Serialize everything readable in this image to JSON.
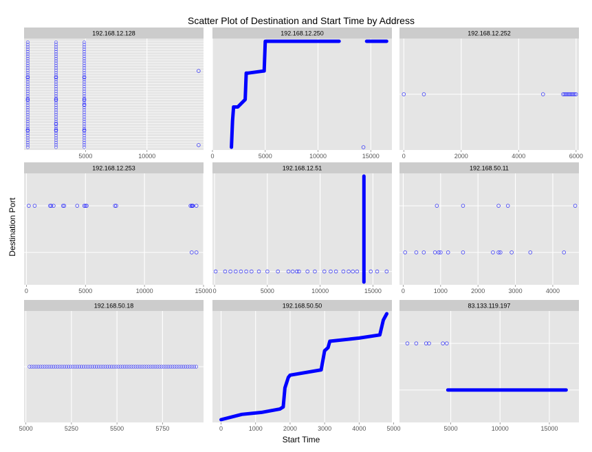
{
  "chart_data": {
    "type": "scatter",
    "title": "Scatter Plot of Destination and Start Time by Address",
    "xlabel": "Start Time",
    "ylabel": "Destination Port",
    "colors": {
      "point": "#0000ff",
      "panel_bg": "#e5e5e5",
      "strip_bg": "#cccccc",
      "grid": "#ffffff"
    },
    "facets": [
      {
        "label": "192.168.12.128",
        "xlim": [
          0,
          14600
        ],
        "xticks": [
          5000,
          10000
        ],
        "ylim": [
          0,
          100
        ],
        "dense_hgrid": true,
        "columns": [
          {
            "x": 300,
            "y0": 0,
            "y1": 100
          },
          {
            "x": 2600,
            "y0": 0,
            "y1": 100
          },
          {
            "x": 4900,
            "y0": 0,
            "y1": 100
          }
        ],
        "lines": [],
        "points": [
          [
            300,
            66
          ],
          [
            300,
            45
          ],
          [
            300,
            16
          ],
          [
            2600,
            66
          ],
          [
            2600,
            45
          ],
          [
            2600,
            22
          ],
          [
            2600,
            16
          ],
          [
            4900,
            66
          ],
          [
            4900,
            45
          ],
          [
            4900,
            40
          ],
          [
            4900,
            16
          ],
          [
            14200,
            72
          ],
          [
            14200,
            2
          ]
        ]
      },
      {
        "label": "192.168.12.250",
        "xlim": [
          0,
          17000
        ],
        "xticks": [
          0,
          5000,
          10000,
          15000
        ],
        "ylim": [
          0,
          100
        ],
        "lines": [
          [
            [
              1800,
              0
            ],
            [
              1900,
              25
            ],
            [
              2000,
              38
            ],
            [
              2200,
              38
            ],
            [
              2400,
              38
            ],
            [
              3100,
              45
            ],
            [
              3200,
              70
            ],
            [
              3400,
              70
            ],
            [
              4900,
              72
            ],
            [
              5000,
              100
            ],
            [
              7000,
              100
            ],
            [
              12000,
              100
            ]
          ],
          [
            [
              14600,
              100
            ],
            [
              16500,
              100
            ]
          ]
        ],
        "points": [
          [
            14300,
            0
          ]
        ]
      },
      {
        "label": "192.168.12.252",
        "xlim": [
          -150,
          6100
        ],
        "xticks": [
          0,
          2000,
          4000,
          6000
        ],
        "ylim": [
          0,
          100
        ],
        "points": [
          [
            0,
            50
          ],
          [
            700,
            50
          ],
          [
            4850,
            50
          ],
          [
            5550,
            50
          ],
          [
            5600,
            50
          ],
          [
            5650,
            50
          ],
          [
            5700,
            50
          ],
          [
            5750,
            50
          ],
          [
            5800,
            50
          ],
          [
            5850,
            50
          ],
          [
            5900,
            50
          ],
          [
            5950,
            50
          ],
          [
            6000,
            50
          ]
        ]
      },
      {
        "label": "192.168.12.253",
        "xlim": [
          -200,
          15000
        ],
        "xticks": [
          0,
          5000,
          10000,
          15000
        ],
        "ylim": [
          0,
          100
        ],
        "points": [
          [
            200,
            72
          ],
          [
            700,
            72
          ],
          [
            2000,
            72
          ],
          [
            2100,
            72
          ],
          [
            2300,
            72
          ],
          [
            3100,
            72
          ],
          [
            3200,
            72
          ],
          [
            4300,
            72
          ],
          [
            4900,
            72
          ],
          [
            5000,
            72
          ],
          [
            5100,
            72
          ],
          [
            7500,
            72
          ],
          [
            7600,
            72
          ],
          [
            13900,
            72
          ],
          [
            14000,
            72
          ],
          [
            14050,
            72
          ],
          [
            14100,
            72
          ],
          [
            14400,
            72
          ],
          [
            14000,
            28
          ],
          [
            14400,
            28
          ]
        ]
      },
      {
        "label": "192.168.12.51",
        "xlim": [
          -200,
          16800
        ],
        "xticks": [
          0,
          5000,
          10000,
          15000
        ],
        "ylim": [
          0,
          100
        ],
        "lines": [
          [
            [
              14150,
              0
            ],
            [
              14150,
              100
            ]
          ]
        ],
        "points": [
          [
            100,
            10
          ],
          [
            1000,
            10
          ],
          [
            1500,
            10
          ],
          [
            2000,
            10
          ],
          [
            2500,
            10
          ],
          [
            3000,
            10
          ],
          [
            3500,
            10
          ],
          [
            4200,
            10
          ],
          [
            5000,
            10
          ],
          [
            6000,
            10
          ],
          [
            7000,
            10
          ],
          [
            7400,
            10
          ],
          [
            7800,
            10
          ],
          [
            8000,
            10
          ],
          [
            8800,
            10
          ],
          [
            9500,
            10
          ],
          [
            10400,
            10
          ],
          [
            11000,
            10
          ],
          [
            11500,
            10
          ],
          [
            12200,
            10
          ],
          [
            12700,
            10
          ],
          [
            13100,
            10
          ],
          [
            13500,
            10
          ],
          [
            14800,
            10
          ],
          [
            15400,
            10
          ],
          [
            16300,
            10
          ]
        ]
      },
      {
        "label": "192.168.50.11",
        "xlim": [
          -100,
          4700
        ],
        "xticks": [
          0,
          1000,
          2000,
          3000,
          4000
        ],
        "ylim": [
          0,
          100
        ],
        "points": [
          [
            900,
            72
          ],
          [
            1600,
            72
          ],
          [
            2550,
            72
          ],
          [
            2800,
            72
          ],
          [
            4600,
            72
          ],
          [
            50,
            28
          ],
          [
            350,
            28
          ],
          [
            550,
            28
          ],
          [
            850,
            28
          ],
          [
            950,
            28
          ],
          [
            1000,
            28
          ],
          [
            1200,
            28
          ],
          [
            1600,
            28
          ],
          [
            2400,
            28
          ],
          [
            2550,
            28
          ],
          [
            2600,
            28
          ],
          [
            2900,
            28
          ],
          [
            3400,
            28
          ],
          [
            4300,
            28
          ]
        ]
      },
      {
        "label": "192.168.50.18",
        "xlim": [
          4990,
          5975
        ],
        "xticks": [
          5000,
          5250,
          5500,
          5750
        ],
        "ylim": [
          0,
          100
        ],
        "line_points": {
          "x0": 5020,
          "x1": 5935,
          "y": 50,
          "n": 78
        },
        "points": []
      },
      {
        "label": "192.168.50.50",
        "xlim": [
          -250,
          4950
        ],
        "xticks": [
          0,
          1000,
          2000,
          3000,
          4000,
          5000
        ],
        "ylim": [
          0,
          100
        ],
        "lines": [
          [
            [
              0,
              0
            ],
            [
              600,
              5
            ],
            [
              1200,
              7
            ],
            [
              1700,
              10
            ],
            [
              1800,
              12
            ],
            [
              1850,
              30
            ],
            [
              1950,
              40
            ],
            [
              2000,
              42
            ],
            [
              2900,
              47
            ],
            [
              3000,
              65
            ],
            [
              3100,
              68
            ],
            [
              3150,
              74
            ],
            [
              4000,
              77
            ],
            [
              4600,
              80
            ],
            [
              4700,
              94
            ],
            [
              4800,
              100
            ]
          ]
        ],
        "points": []
      },
      {
        "label": "83.133.119.197",
        "xlim": [
          -200,
          18000
        ],
        "xticks": [
          5000,
          10000,
          15000
        ],
        "ylim": [
          0,
          100
        ],
        "lines": [
          [
            [
              4700,
              28
            ],
            [
              16700,
              28
            ]
          ]
        ],
        "points": [
          [
            600,
            72
          ],
          [
            1500,
            72
          ],
          [
            2500,
            72
          ],
          [
            2800,
            72
          ],
          [
            4200,
            72
          ],
          [
            4600,
            72
          ]
        ]
      }
    ]
  }
}
